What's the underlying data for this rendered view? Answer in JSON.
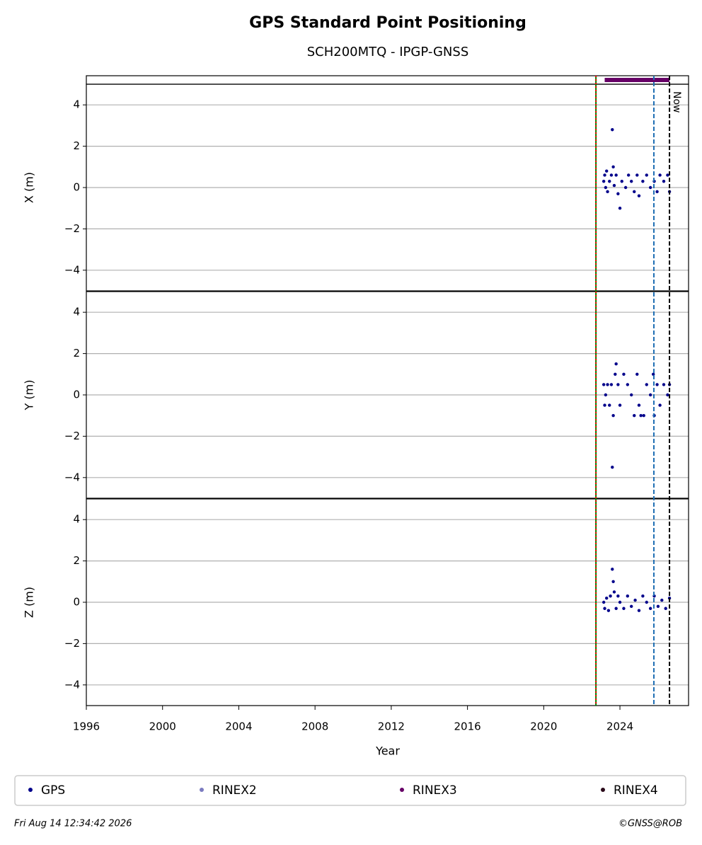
{
  "chart_data": {
    "type": "scatter",
    "title": "GPS Standard Point Positioning",
    "subtitle": "SCH200MTQ - IPGP-GNSS",
    "xlabel": "Year",
    "xlim": [
      1996,
      2027.6
    ],
    "xticks": [
      1996,
      2000,
      2004,
      2008,
      2012,
      2016,
      2020,
      2024
    ],
    "series": [
      {
        "name": "GPS",
        "color": "#00008b"
      },
      {
        "name": "RINEX2",
        "color": "#7b7bc0"
      },
      {
        "name": "RINEX3",
        "color": "#660066",
        "x": [
          2023.2,
          2026.6
        ]
      },
      {
        "name": "RINEX4",
        "color": "#2a0a1a"
      }
    ],
    "events": [
      {
        "x": 2022.74,
        "colors": [
          "#008000",
          "#ff0000"
        ]
      },
      {
        "x": 2025.78,
        "colors": [
          "#1f6fb4"
        ]
      },
      {
        "x": 2026.6,
        "colors": [
          "#000000"
        ],
        "label": "Now"
      }
    ],
    "panels": [
      {
        "ylabel": "X (m)",
        "ylim": [
          -5,
          5
        ],
        "yticks": [
          {
            "value": -4,
            "label": "−4"
          },
          {
            "value": -2,
            "label": "−2"
          },
          0,
          2,
          4
        ],
        "x": [
          2023.15,
          2023.2,
          2023.25,
          2023.3,
          2023.35,
          2023.45,
          2023.55,
          2023.6,
          2023.65,
          2023.7,
          2023.8,
          2023.9,
          2024.0,
          2024.1,
          2024.3,
          2024.45,
          2024.6,
          2024.75,
          2024.9,
          2025.0,
          2025.2,
          2025.4,
          2025.6,
          2025.8,
          2025.95,
          2026.1,
          2026.3,
          2026.5,
          2026.6
        ],
        "values": [
          0.3,
          0.6,
          0.0,
          0.8,
          -0.2,
          0.3,
          0.6,
          2.8,
          1.0,
          0.1,
          0.6,
          -0.3,
          -1.0,
          0.3,
          0.0,
          0.6,
          0.3,
          -0.2,
          0.6,
          -0.4,
          0.3,
          0.6,
          0.0,
          0.3,
          -0.2,
          0.6,
          0.3,
          0.6,
          -0.2
        ]
      },
      {
        "ylabel": "Y (m)",
        "ylim": [
          -5,
          5
        ],
        "yticks": [
          {
            "value": -4,
            "label": "−4"
          },
          {
            "value": -2,
            "label": "−2"
          },
          0,
          2,
          4
        ],
        "x": [
          2023.15,
          2023.2,
          2023.25,
          2023.35,
          2023.45,
          2023.55,
          2023.6,
          2023.65,
          2023.75,
          2023.8,
          2023.9,
          2024.0,
          2024.2,
          2024.4,
          2024.6,
          2024.75,
          2024.9,
          2025.0,
          2025.1,
          2025.25,
          2025.4,
          2025.6,
          2025.75,
          2025.8,
          2025.95,
          2026.1,
          2026.3,
          2026.5,
          2026.6
        ],
        "values": [
          0.5,
          -0.5,
          0.0,
          0.5,
          -0.5,
          0.5,
          -3.5,
          -1.0,
          1.0,
          1.5,
          0.5,
          -0.5,
          1.0,
          0.5,
          0.0,
          -1.0,
          1.0,
          -0.5,
          -1.0,
          -1.0,
          0.5,
          0.0,
          1.0,
          -1.0,
          0.5,
          -0.5,
          0.5,
          0.0,
          0.5
        ]
      },
      {
        "ylabel": "Z (m)",
        "ylim": [
          -5,
          5
        ],
        "yticks": [
          {
            "value": -4,
            "label": "−4"
          },
          {
            "value": -2,
            "label": "−2"
          },
          0,
          2,
          4
        ],
        "x": [
          2023.15,
          2023.2,
          2023.3,
          2023.4,
          2023.5,
          2023.6,
          2023.65,
          2023.7,
          2023.8,
          2023.9,
          2024.0,
          2024.2,
          2024.4,
          2024.6,
          2024.8,
          2025.0,
          2025.2,
          2025.4,
          2025.6,
          2025.8,
          2026.0,
          2026.2,
          2026.4,
          2026.6
        ],
        "values": [
          0.0,
          -0.3,
          0.2,
          -0.4,
          0.3,
          1.6,
          1.0,
          0.5,
          -0.3,
          0.3,
          0.0,
          -0.3,
          0.3,
          -0.2,
          0.1,
          -0.4,
          0.3,
          0.0,
          -0.3,
          0.3,
          -0.2,
          0.1,
          -0.3,
          0.2
        ]
      }
    ],
    "timestamp": "Fri Aug 14 12:34:42 2026",
    "credit": "©GNSS@ROB"
  }
}
